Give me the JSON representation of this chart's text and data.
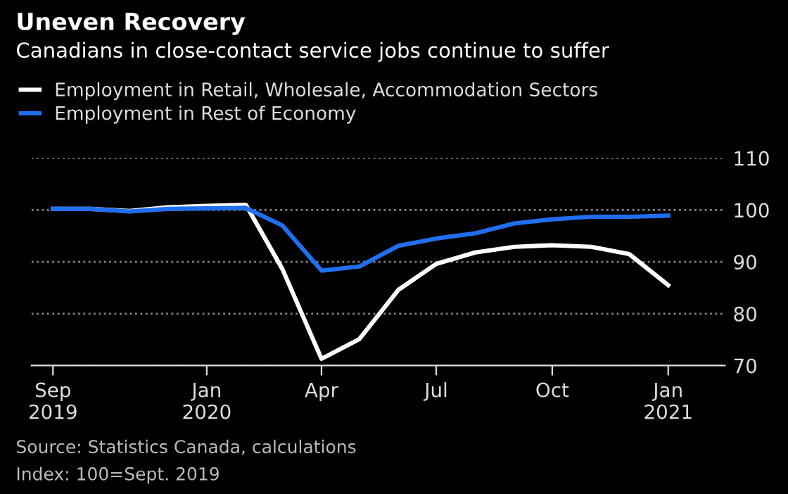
{
  "chart_data": {
    "type": "line",
    "title": "Uneven Recovery",
    "subtitle": "Canadians in close-contact service jobs continue to suffer",
    "x": [
      "2019-09",
      "2019-10",
      "2019-11",
      "2019-12",
      "2020-01",
      "2020-02",
      "2020-03",
      "2020-04",
      "2020-05",
      "2020-06",
      "2020-07",
      "2020-08",
      "2020-09",
      "2020-10",
      "2020-11",
      "2020-12",
      "2021-01"
    ],
    "series": [
      {
        "name": "Employment in Retail, Wholesale, Accommodation Sectors",
        "color": "#ffffff",
        "values": [
          100.2,
          100.2,
          99.8,
          100.5,
          100.8,
          101.0,
          88.6,
          71.3,
          75.1,
          84.6,
          89.6,
          91.8,
          92.9,
          93.2,
          92.9,
          91.5,
          85.5
        ]
      },
      {
        "name": "Employment in Rest of Economy",
        "color": "#1f6ff0",
        "values": [
          100.2,
          100.2,
          99.7,
          100.2,
          100.3,
          100.4,
          97.0,
          88.3,
          89.1,
          93.1,
          94.5,
          95.5,
          97.4,
          98.2,
          98.7,
          98.7,
          98.9
        ]
      }
    ],
    "xlim": [
      "2019-08-15",
      "2021-02-15"
    ],
    "xticks": [
      {
        "value": "2019-09",
        "label": "Sep\n2019"
      },
      {
        "value": "2020-01",
        "label": "Jan\n2020"
      },
      {
        "value": "2020-04",
        "label": "Apr"
      },
      {
        "value": "2020-07",
        "label": "Jul"
      },
      {
        "value": "2020-10",
        "label": "Oct"
      },
      {
        "value": "2021-01",
        "label": "Jan\n2021"
      }
    ],
    "ylim": [
      70,
      110
    ],
    "yticks": [
      70,
      80,
      90,
      100,
      110
    ],
    "grid": "y",
    "legend": "top left",
    "marker": "none",
    "line_style": "solid",
    "annotations": [
      "Source: Statistics Canada, calculations",
      "Index: 100=Sept. 2019"
    ]
  }
}
